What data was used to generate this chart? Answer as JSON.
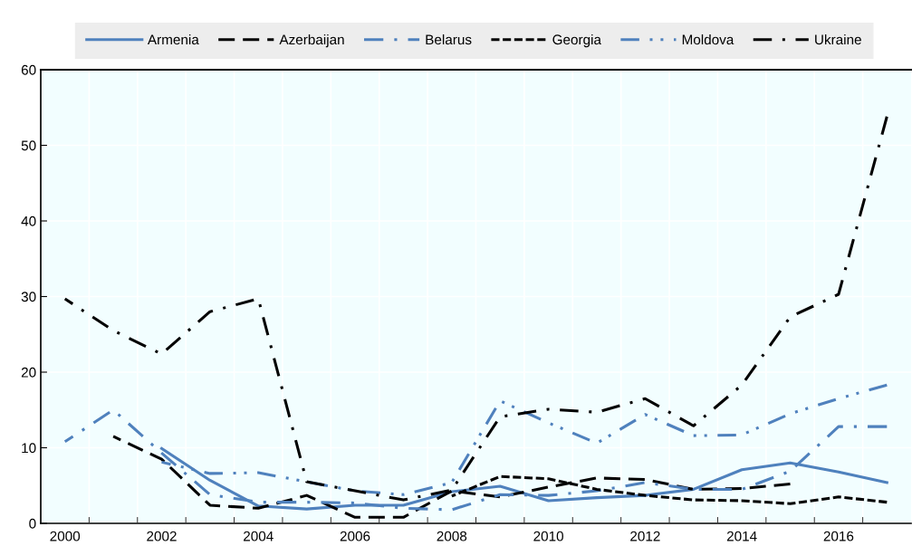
{
  "chart_data": {
    "type": "line",
    "categories": [
      "2000",
      null,
      "2002",
      null,
      "2004",
      null,
      "2006",
      null,
      "2008",
      null,
      "2010",
      null,
      "2012",
      null,
      "2014",
      null,
      "2016",
      null
    ],
    "series": [
      {
        "name": "Armenia",
        "color": "#4f81bd",
        "line_style": "solid",
        "values": [
          null,
          null,
          9.9,
          5.7,
          2.3,
          1.9,
          2.4,
          2.4,
          4.2,
          4.9,
          3.0,
          3.4,
          3.7,
          4.5,
          7.1,
          8.0,
          6.8,
          5.4
        ]
      },
      {
        "name": "Azerbaijan",
        "color": "#000000",
        "line_style": "dashed",
        "values": [
          null,
          11.5,
          8.5,
          2.4,
          2.0,
          3.7,
          0.8,
          0.8,
          4.3,
          3.5,
          4.8,
          6.0,
          5.8,
          4.5,
          4.6,
          5.2,
          null,
          null
        ]
      },
      {
        "name": "Belarus",
        "color": "#4f81bd",
        "line_style": "dashdot",
        "values": [
          10.8,
          15.0,
          9.3,
          3.8,
          2.8,
          2.8,
          2.7,
          2.0,
          1.8,
          3.8,
          3.7,
          4.3,
          5.4,
          4.5,
          4.5,
          6.9,
          12.8,
          12.8
        ]
      },
      {
        "name": "Georgia",
        "color": "#000000",
        "line_style": "dotted",
        "values": [
          null,
          null,
          null,
          null,
          null,
          null,
          null,
          null,
          3.6,
          6.2,
          5.9,
          4.5,
          3.7,
          3.1,
          3.0,
          2.6,
          3.5,
          2.8
        ]
      },
      {
        "name": "Moldova",
        "color": "#4f81bd",
        "line_style": "dashdotdot",
        "values": [
          null,
          null,
          8.1,
          6.6,
          6.7,
          5.5,
          4.3,
          3.8,
          5.4,
          16.2,
          13.3,
          10.6,
          14.4,
          11.6,
          11.7,
          14.5,
          16.5,
          18.3
        ]
      },
      {
        "name": "Ukraine",
        "color": "#000000",
        "line_style": "dashdot",
        "values": [
          29.7,
          25.5,
          22.4,
          28.0,
          29.7,
          5.5,
          4.3,
          3.1,
          4.4,
          14.1,
          15.1,
          14.7,
          16.5,
          12.9,
          18.3,
          27.3,
          30.3,
          53.8
        ]
      }
    ],
    "ylim": [
      0,
      60
    ],
    "yticks": [
      0,
      10,
      20,
      30,
      40,
      50,
      60
    ],
    "grid": true,
    "legend": "top"
  }
}
